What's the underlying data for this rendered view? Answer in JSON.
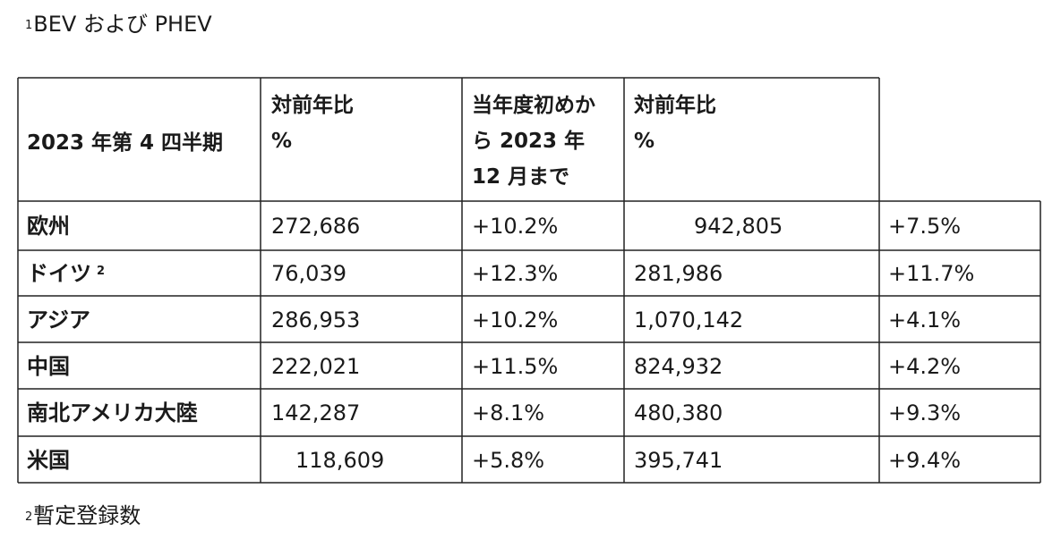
{
  "footnote_top": {
    "mark": "1",
    "text": "BEV および PHEV"
  },
  "table": {
    "headers": [
      "2023 年第 4 四半期",
      "対前年比\n%",
      "当年度初めか\nら 2023 年\n12 月まで",
      "対前年比\n%",
      ""
    ],
    "rows": [
      {
        "region": "欧州",
        "sup": "",
        "q4": "272,686",
        "q4_yoy": "+10.2%",
        "ytd": "942,805",
        "ytd_yoy": "+7.5%"
      },
      {
        "region": "ドイツ",
        "sup": "2",
        "q4": "76,039",
        "q4_yoy": "+12.3%",
        "ytd": "281,986",
        "ytd_yoy": "+11.7%"
      },
      {
        "region": "アジア",
        "sup": "",
        "q4": "286,953",
        "q4_yoy": "+10.2%",
        "ytd": "1,070,142",
        "ytd_yoy": "+4.1%"
      },
      {
        "region": "中国",
        "sup": "",
        "q4": "222,021",
        "q4_yoy": "+11.5%",
        "ytd": "824,932",
        "ytd_yoy": "+4.2%"
      },
      {
        "region": "南北アメリカ大陸",
        "sup": "",
        "q4": "142,287",
        "q4_yoy": "+8.1%",
        "ytd": "480,380",
        "ytd_yoy": "+9.3%"
      },
      {
        "region": "米国",
        "sup": "",
        "q4": "118,609",
        "q4_yoy": "+5.8%",
        "ytd": "395,741",
        "ytd_yoy": "+9.4%"
      }
    ]
  },
  "footnote_bottom": {
    "mark": "2",
    "text": "暫定登録数"
  }
}
